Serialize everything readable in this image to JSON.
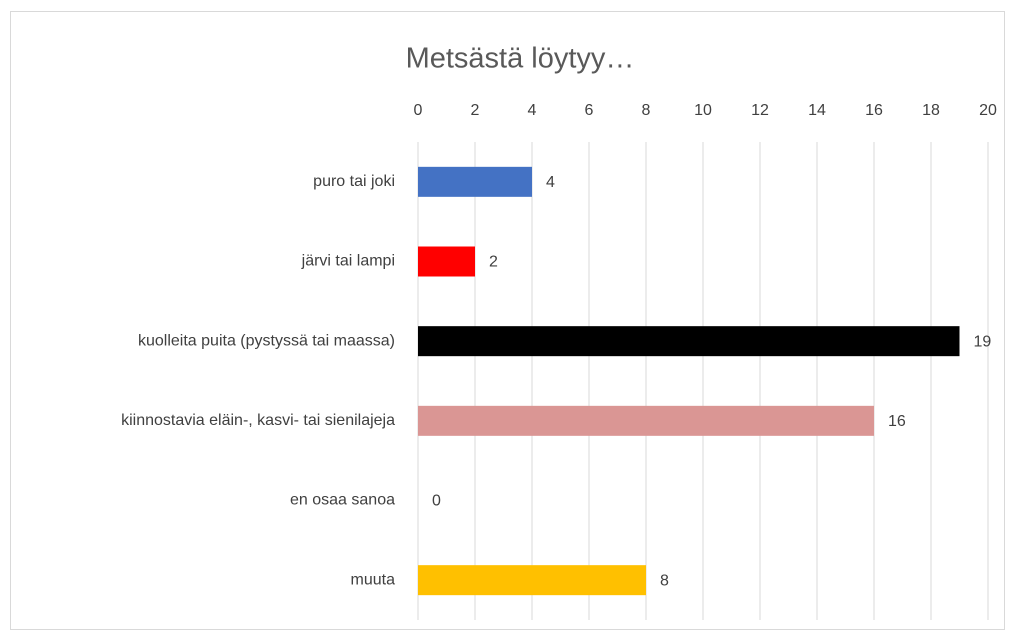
{
  "chart_data": {
    "type": "bar",
    "orientation": "horizontal",
    "title": "Metsästä löytyy…",
    "categories": [
      "puro tai joki",
      "järvi tai lampi",
      "kuolleita puita (pystyssä tai maassa)",
      "kiinnostavia eläin-, kasvi- tai sienilajeja",
      "en osaa sanoa",
      "muuta"
    ],
    "values": [
      4,
      2,
      19,
      16,
      0,
      8
    ],
    "colors": [
      "#4472c4",
      "#ff0000",
      "#000000",
      "#da9694",
      "#a5a5a5",
      "#ffc000"
    ],
    "xlim": [
      0,
      20
    ],
    "xticks": [
      0,
      2,
      4,
      6,
      8,
      10,
      12,
      14,
      16,
      18,
      20
    ],
    "grid": true
  }
}
